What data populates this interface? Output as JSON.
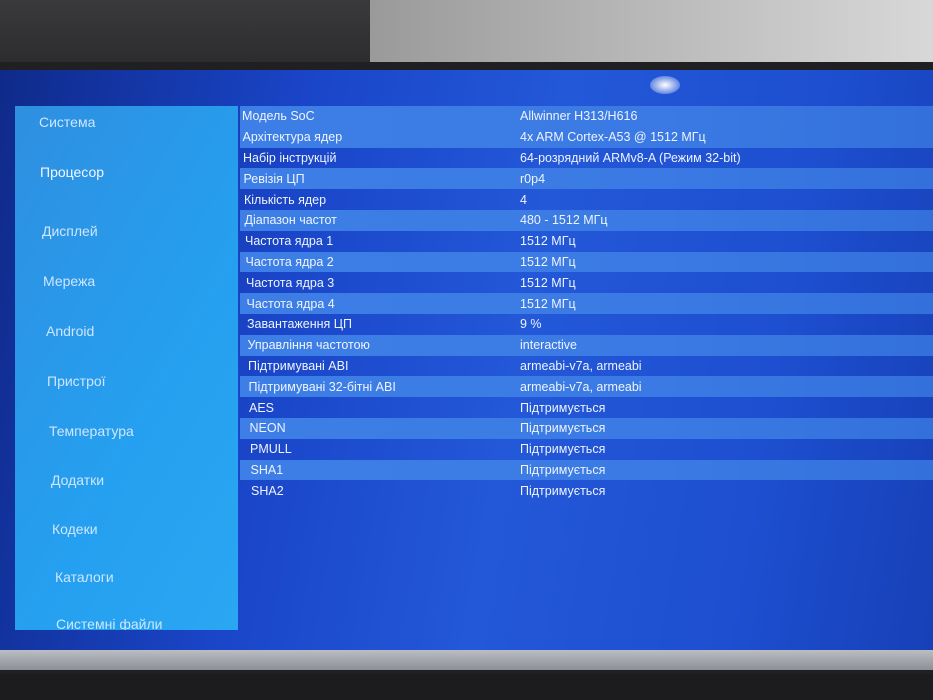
{
  "sidebar": {
    "items": [
      {
        "label": "Система",
        "active": false
      },
      {
        "label": "Процесор",
        "active": true
      },
      {
        "label": "Дисплей",
        "active": false
      },
      {
        "label": "Мережа",
        "active": false
      },
      {
        "label": "Android",
        "active": false
      },
      {
        "label": "Пристрої",
        "active": false
      },
      {
        "label": "Температура",
        "active": false
      },
      {
        "label": "Додатки",
        "active": false
      },
      {
        "label": "Кодеки",
        "active": false
      },
      {
        "label": "Каталоги",
        "active": false
      },
      {
        "label": "Системні файли",
        "active": false
      }
    ]
  },
  "cpu_info": {
    "rows": [
      {
        "key": "Модель SoC",
        "value": "Allwinner H313/H616"
      },
      {
        "key": "Архітектура ядер",
        "value": "4x ARM Cortex-A53 @ 1512 МГц"
      },
      {
        "key": "Набір інструкцій",
        "value": "64-розрядний ARMv8-A (Режим 32-bit)"
      },
      {
        "key": "Ревізія ЦП",
        "value": "r0p4"
      },
      {
        "key": "Кількість ядер",
        "value": "4"
      },
      {
        "key": "Діапазон частот",
        "value": "480 - 1512 МГц"
      },
      {
        "key": "Частота ядра 1",
        "value": "1512 МГц"
      },
      {
        "key": "Частота ядра 2",
        "value": "1512 МГц"
      },
      {
        "key": "Частота ядра 3",
        "value": "1512 МГц"
      },
      {
        "key": "Частота ядра 4",
        "value": "1512 МГц"
      },
      {
        "key": "Завантаження ЦП",
        "value": "9 %"
      },
      {
        "key": "Управління частотою",
        "value": "interactive"
      },
      {
        "key": "Підтримувані ABI",
        "value": "armeabi-v7a, armeabi"
      },
      {
        "key": "Підтримувані 32-бітні ABI",
        "value": "armeabi-v7a, armeabi"
      },
      {
        "key": "AES",
        "value": "Підтримується"
      },
      {
        "key": "NEON",
        "value": "Підтримується"
      },
      {
        "key": "PMULL",
        "value": "Підтримується"
      },
      {
        "key": "SHA1",
        "value": "Підтримується"
      },
      {
        "key": "SHA2",
        "value": "Підтримується"
      }
    ]
  },
  "colors": {
    "screen": "#1a45c8",
    "sidebar": "#25a0f0",
    "row_highlight": "#3d7fe6"
  }
}
